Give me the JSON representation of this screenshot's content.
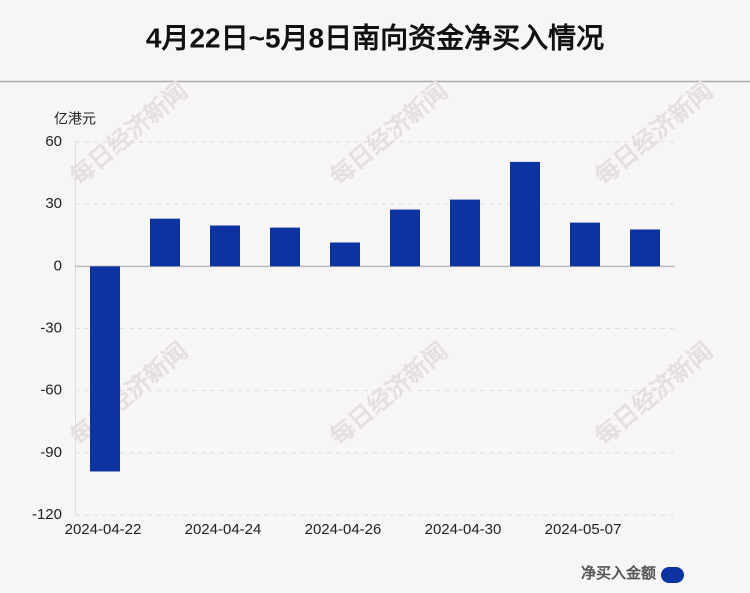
{
  "chart_data": {
    "type": "bar",
    "title": "4月22日~5月8日南向资金净买入情况",
    "y_unit": "亿港元",
    "watermark": "每日经济新闻",
    "categories": [
      "2024-04-22",
      null,
      "2024-04-24",
      null,
      "2024-04-26",
      null,
      "2024-04-30",
      null,
      "2024-05-07",
      null
    ],
    "series": [
      {
        "name": "净买入金额",
        "color": "#0d33a0",
        "values": [
          -99,
          23,
          19.7,
          18.7,
          11.5,
          27.4,
          32.2,
          50.4,
          21.1,
          17.8
        ]
      }
    ],
    "ylim": [
      -120,
      60
    ],
    "yticks": [
      -120,
      -90,
      -60,
      -30,
      0,
      30,
      60
    ],
    "grid": true
  }
}
